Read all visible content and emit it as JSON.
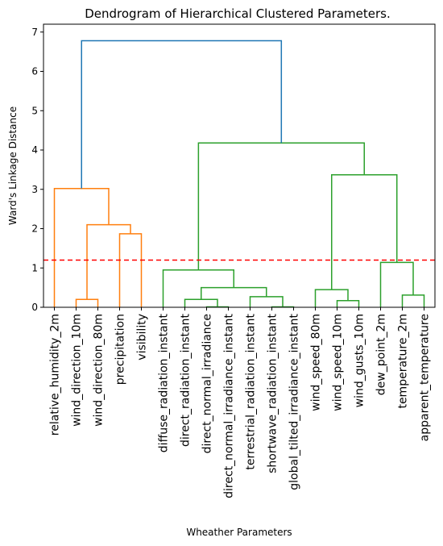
{
  "chart_data": {
    "type": "dendrogram",
    "title": "Dendrogram of Hierarchical Clustered Parameters.",
    "xlabel": "Wheather Parameters",
    "ylabel": "Ward's Linkage Distance",
    "ylim": [
      0,
      7.2
    ],
    "yticks": [
      0,
      1,
      2,
      3,
      4,
      5,
      6,
      7
    ],
    "leaves": [
      "relative_humidity_2m",
      "wind_direction_10m",
      "wind_direction_80m",
      "precipitation",
      "visibility",
      "diffuse_radiation_instant",
      "direct_radiation_instant",
      "direct_normal_irradiance",
      "direct_normal_irradiance_instant",
      "terrestrial_radiation_instant",
      "shortwave_radiation_instant",
      "global_tilted_irradiance_instant",
      "wind_speed_80m",
      "wind_speed_10m",
      "wind_gusts_10m",
      "dew_point_2m",
      "temperature_2m",
      "apparent_temperature"
    ],
    "colors": {
      "cluster_1": "#ff7f0e",
      "cluster_2": "#2ca02c",
      "above_threshold": "#1f77b4",
      "threshold_line": "#ff0000"
    },
    "threshold": 1.2,
    "merges": [
      {
        "left": "wind_direction_10m",
        "right": "wind_direction_80m",
        "height": 0.2,
        "color": "cluster_1"
      },
      {
        "left": "precipitation",
        "right": "visibility",
        "height": 1.87,
        "color": "cluster_1"
      },
      {
        "left": "(wind_direction_10m, wind_direction_80m)",
        "right": "(precipitation, visibility)",
        "height": 2.1,
        "color": "cluster_1"
      },
      {
        "left": "relative_humidity_2m",
        "right": "(wind_direction_10m .. visibility)",
        "height": 3.02,
        "color": "cluster_1"
      },
      {
        "left": "direct_normal_irradiance",
        "right": "direct_normal_irradiance_instant",
        "height": 0.01,
        "color": "cluster_2"
      },
      {
        "left": "direct_radiation_instant",
        "right": "(direct_normal_irradiance, direct_normal_irradiance_instant)",
        "height": 0.2,
        "color": "cluster_2"
      },
      {
        "left": "shortwave_radiation_instant",
        "right": "global_tilted_irradiance_instant",
        "height": 0.01,
        "color": "cluster_2"
      },
      {
        "left": "terrestrial_radiation_instant",
        "right": "(shortwave_radiation_instant, global_tilted_irradiance_instant)",
        "height": 0.27,
        "color": "cluster_2"
      },
      {
        "left": "(direct_radiation_instant ..)",
        "right": "(terrestrial_radiation_instant ..)",
        "height": 0.5,
        "color": "cluster_2"
      },
      {
        "left": "diffuse_radiation_instant",
        "right": "(direct_radiation_instant .. global_tilted_irradiance_instant)",
        "height": 0.95,
        "color": "cluster_2"
      },
      {
        "left": "wind_speed_10m",
        "right": "wind_gusts_10m",
        "height": 0.17,
        "color": "cluster_2"
      },
      {
        "left": "wind_speed_80m",
        "right": "(wind_speed_10m, wind_gusts_10m)",
        "height": 0.45,
        "color": "cluster_2"
      },
      {
        "left": "temperature_2m",
        "right": "apparent_temperature",
        "height": 0.31,
        "color": "cluster_2"
      },
      {
        "left": "dew_point_2m",
        "right": "(temperature_2m, apparent_temperature)",
        "height": 1.14,
        "color": "cluster_2"
      },
      {
        "left": "(wind_speed_80m .. wind_gusts_10m)",
        "right": "(dew_point_2m .. apparent_temperature)",
        "height": 3.37,
        "color": "cluster_2"
      },
      {
        "left": "(diffuse_radiation_instant .. global_tilted_irradiance_instant)",
        "right": "(wind_speed_80m .. apparent_temperature)",
        "height": 4.18,
        "color": "cluster_2"
      },
      {
        "left": "(relative_humidity_2m .. visibility)",
        "right": "(diffuse_radiation_instant .. apparent_temperature)",
        "height": 6.78,
        "color": "above_threshold"
      }
    ]
  }
}
